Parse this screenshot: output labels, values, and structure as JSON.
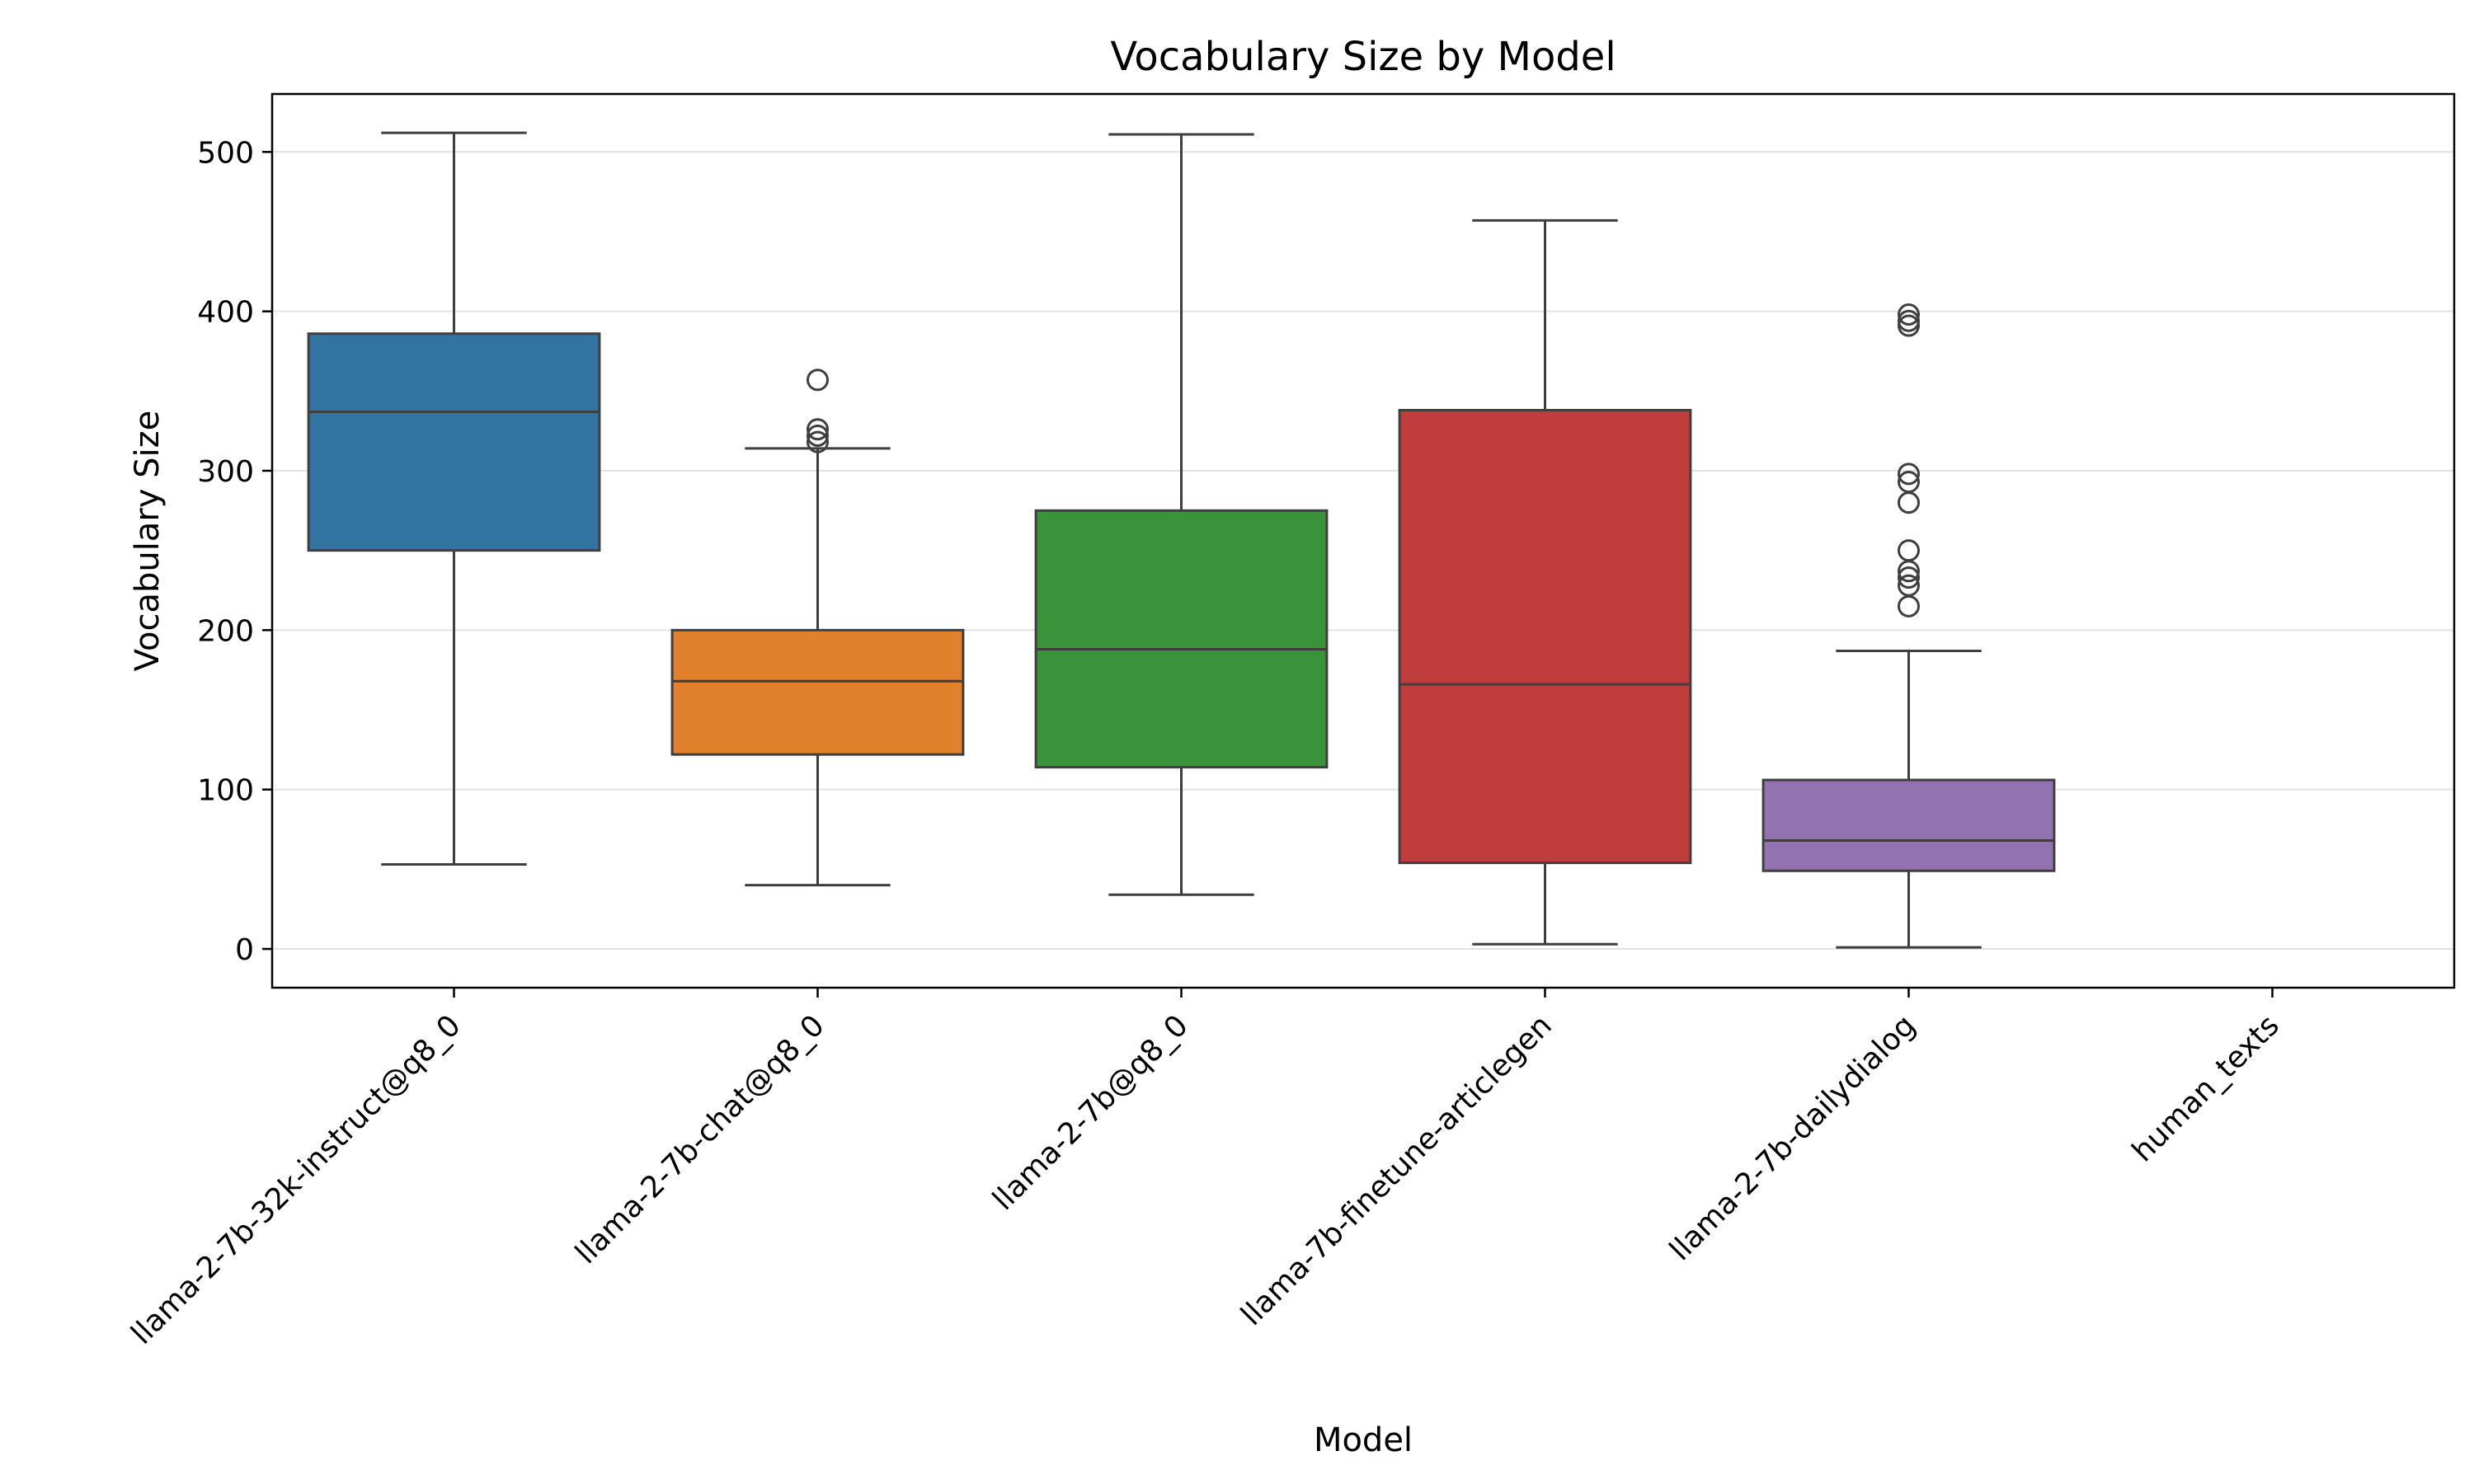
{
  "chart_data": {
    "type": "box",
    "title": "Vocabulary Size by Model",
    "xlabel": "Model",
    "ylabel": "Vocabulary Size",
    "ylim": [
      -25,
      538
    ],
    "yticks": [
      0,
      100,
      200,
      300,
      400,
      500
    ],
    "grid": "horizontal",
    "legend": "none",
    "categories": [
      "llama-2-7b-32k-instruct@q8_0",
      "llama-2-7b-chat@q8_0",
      "llama-2-7b@q8_0",
      "llama-7b-finetune-articlegen",
      "llama-2-7b-dailydialog",
      "human_texts"
    ],
    "boxes": [
      {
        "whisker_low": 53,
        "q1": 250,
        "median": 337,
        "q3": 386,
        "whisker_high": 512,
        "outliers": [],
        "color": "#3274a1"
      },
      {
        "whisker_low": 40,
        "q1": 122,
        "median": 168,
        "q3": 200,
        "whisker_high": 314,
        "outliers": [
          318,
          322,
          326,
          357
        ],
        "color": "#e1812c"
      },
      {
        "whisker_low": 34,
        "q1": 114,
        "median": 188,
        "q3": 275,
        "whisker_high": 511,
        "outliers": [],
        "color": "#3a923a"
      },
      {
        "whisker_low": 3,
        "q1": 54,
        "median": 166,
        "q3": 338,
        "whisker_high": 457,
        "outliers": [],
        "color": "#c03d3e"
      },
      {
        "whisker_low": 1,
        "q1": 49,
        "median": 68,
        "q3": 106,
        "whisker_high": 187,
        "outliers": [
          215,
          228,
          233,
          237,
          250,
          280,
          293,
          298,
          391,
          394,
          398
        ],
        "color": "#9372b2"
      },
      null
    ]
  }
}
